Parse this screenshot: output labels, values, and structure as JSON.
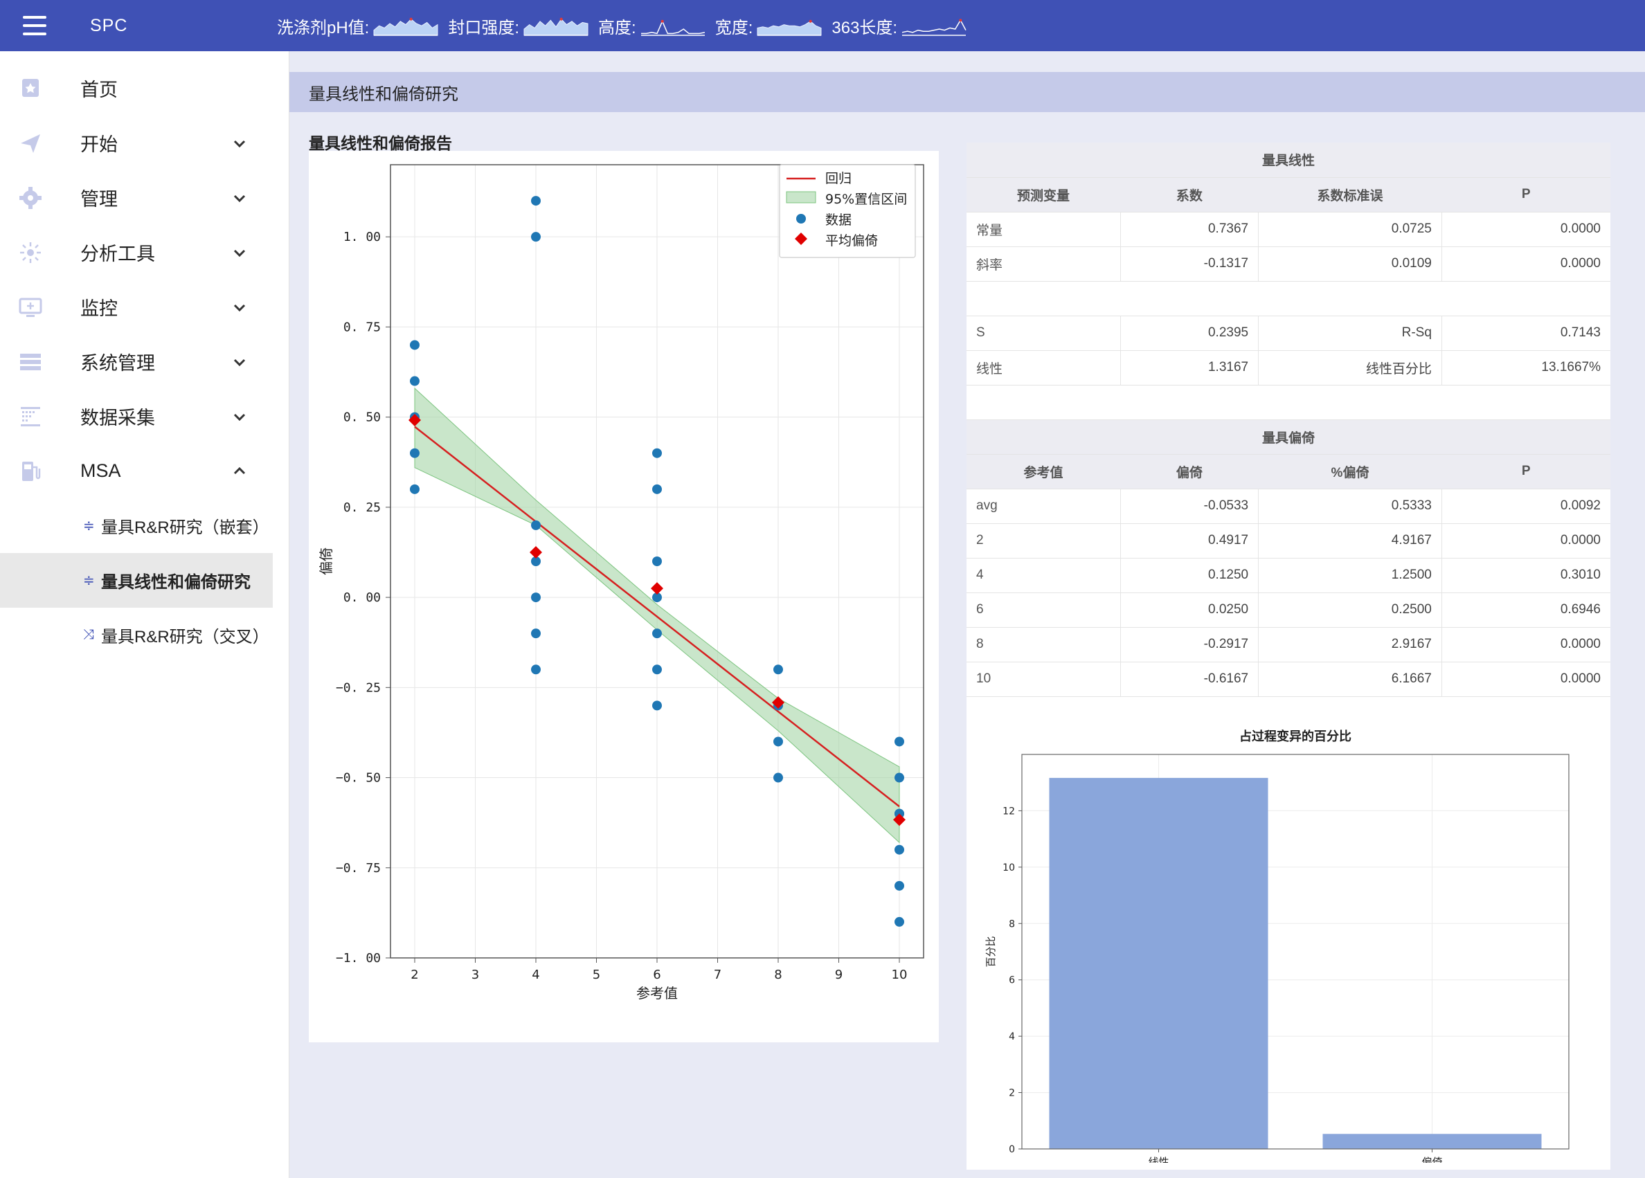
{
  "topbar": {
    "title": "SPC",
    "metrics": [
      {
        "label": "洗涤剂pH值:",
        "icon": "sparkline-area"
      },
      {
        "label": "封口强度:",
        "icon": "sparkline-area"
      },
      {
        "label": "高度:",
        "icon": "sparkline-line"
      },
      {
        "label": "宽度:",
        "icon": "sparkline-area"
      },
      {
        "label": "363长度:",
        "icon": "sparkline-line"
      }
    ],
    "accent": "#3f51b5"
  },
  "sidebar": {
    "items": [
      {
        "label": "首页",
        "icon": "home-icon"
      },
      {
        "label": "开始",
        "icon": "send-icon"
      },
      {
        "label": "管理",
        "icon": "gear-icon"
      },
      {
        "label": "分析工具",
        "icon": "sun-icon"
      },
      {
        "label": "监控",
        "icon": "monitor-icon"
      },
      {
        "label": "系统管理",
        "icon": "server-icon"
      },
      {
        "label": "数据采集",
        "icon": "grid-icon"
      },
      {
        "label": "MSA",
        "icon": "fuel-icon"
      }
    ],
    "sub_items": [
      {
        "label": "量具R&R研究（嵌套）"
      },
      {
        "label": "量具线性和偏倚研究"
      },
      {
        "label": "量具R&R研究（交叉）"
      }
    ]
  },
  "page": {
    "header": "量具线性和偏倚研究",
    "section_title": "量具线性和偏倚报告"
  },
  "linearity_table": {
    "title": "量具线性",
    "headers": [
      "预测变量",
      "系数",
      "系数标准误",
      "P"
    ],
    "rows": [
      [
        "常量",
        "0.7367",
        "0.0725",
        "0.0000"
      ],
      [
        "斜率",
        "-0.1317",
        "0.0109",
        "0.0000"
      ]
    ],
    "stats": [
      [
        "S",
        "0.2395",
        "R-Sq",
        "0.7143"
      ],
      [
        "线性",
        "1.3167",
        "线性百分比",
        "13.1667%"
      ]
    ]
  },
  "bias_table": {
    "title": "量具偏倚",
    "headers": [
      "参考值",
      "偏倚",
      "%偏倚",
      "P"
    ],
    "rows": [
      [
        "avg",
        "-0.0533",
        "0.5333",
        "0.0092"
      ],
      [
        "2",
        "0.4917",
        "4.9167",
        "0.0000"
      ],
      [
        "4",
        "0.1250",
        "1.2500",
        "0.3010"
      ],
      [
        "6",
        "0.0250",
        "0.2500",
        "0.6946"
      ],
      [
        "8",
        "-0.2917",
        "2.9167",
        "0.0000"
      ],
      [
        "10",
        "-0.6167",
        "6.1667",
        "0.0000"
      ]
    ]
  },
  "chart_data": [
    {
      "type": "scatter",
      "title": "",
      "xlabel": "参考值",
      "ylabel": "偏倚",
      "xlim": [
        1.6,
        10.4
      ],
      "ylim": [
        -1.0,
        1.2
      ],
      "xticks": [
        2,
        3,
        4,
        5,
        6,
        7,
        8,
        9,
        10
      ],
      "yticks": [
        -1.0,
        -0.75,
        -0.5,
        -0.25,
        0.0,
        0.25,
        0.5,
        0.75,
        1.0
      ],
      "ytick_labels": [
        "−1. 00",
        "−0. 75",
        "−0. 50",
        "−0. 25",
        "0. 00",
        "0. 25",
        "0. 50",
        "0. 75",
        "1. 00"
      ],
      "grid": true,
      "legend": {
        "position": "top-right",
        "entries": [
          "回归",
          "95%置信区间",
          "数据",
          "平均偏倚"
        ]
      },
      "regression": {
        "x": [
          2,
          10
        ],
        "y": [
          0.4733,
          -0.58
        ],
        "color": "#d62020"
      },
      "confidence_band": {
        "x": [
          2,
          4,
          6,
          8,
          10
        ],
        "upper": [
          0.58,
          0.27,
          -0.02,
          -0.28,
          -0.47
        ],
        "lower": [
          0.36,
          0.2,
          -0.09,
          -0.37,
          -0.68
        ],
        "color": "#a5d6a7"
      },
      "data_points": {
        "color": "#1f77b4",
        "x": [
          2,
          2,
          2,
          2,
          2,
          4,
          4,
          4,
          4,
          4,
          4,
          4,
          6,
          6,
          6,
          6,
          6,
          6,
          6,
          8,
          8,
          8,
          8,
          10,
          10,
          10,
          10,
          10,
          10,
          10
        ],
        "y": [
          0.7,
          0.6,
          0.5,
          0.4,
          0.3,
          1.1,
          1.0,
          0.2,
          0.1,
          0.0,
          -0.1,
          -0.2,
          0.4,
          0.3,
          0.1,
          0.0,
          -0.1,
          -0.2,
          -0.3,
          -0.2,
          -0.3,
          -0.4,
          -0.5,
          -0.4,
          -0.5,
          -0.6,
          -0.7,
          -0.8,
          -0.9,
          -0.6
        ]
      },
      "mean_bias": {
        "color": "#e00000",
        "x": [
          2,
          4,
          6,
          8,
          10
        ],
        "y": [
          0.4917,
          0.125,
          0.025,
          -0.2917,
          -0.6167
        ]
      }
    },
    {
      "type": "bar",
      "title": "占过程变异的百分比",
      "xlabel": "",
      "ylabel": "百分比",
      "categories": [
        "线性",
        "偏倚"
      ],
      "values": [
        13.1667,
        0.5333
      ],
      "ylim": [
        0,
        14
      ],
      "yticks": [
        0,
        2,
        4,
        6,
        8,
        10,
        12
      ],
      "grid": true,
      "color": "#8aa6db"
    }
  ]
}
